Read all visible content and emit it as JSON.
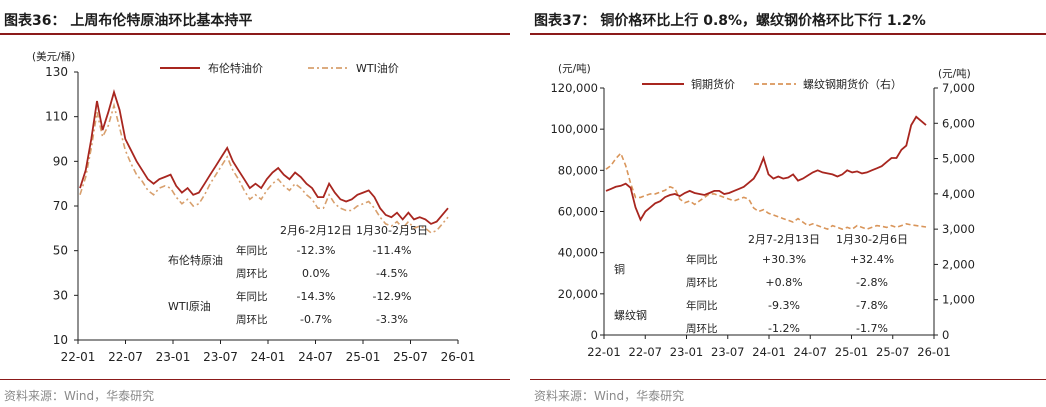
{
  "left": {
    "fig_title": "图表36：  上周布伦特原油环比基本持平",
    "source": "资料来源：Wind，华泰研究",
    "chart_data": {
      "type": "line",
      "ylabel": "(美元/桶)",
      "ylim": [
        10,
        130
      ],
      "yticks": [
        10,
        30,
        50,
        70,
        90,
        110,
        130
      ],
      "xticks": [
        "22-01",
        "22-07",
        "23-01",
        "23-07",
        "24-01",
        "24-07",
        "25-01",
        "25-07",
        "26-01"
      ],
      "series": [
        {
          "name": "布伦特油价",
          "color": "#a8261f",
          "values": [
            78,
            86,
            100,
            117,
            104,
            112,
            121,
            113,
            100,
            95,
            90,
            86,
            82,
            80,
            82,
            83,
            84,
            79,
            76,
            78,
            75,
            76,
            80,
            84,
            88,
            92,
            96,
            90,
            86,
            82,
            78,
            80,
            78,
            82,
            85,
            87,
            84,
            82,
            85,
            83,
            80,
            78,
            74,
            74,
            80,
            76,
            73,
            72,
            73,
            75,
            76,
            77,
            74,
            69,
            66,
            65,
            67,
            64,
            67,
            64,
            65,
            64,
            62,
            63,
            66,
            69
          ]
        },
        {
          "name": "WTI油价",
          "color": "#d8a06e",
          "values": [
            75,
            83,
            96,
            112,
            101,
            106,
            115,
            105,
            95,
            89,
            84,
            81,
            77,
            75,
            78,
            79,
            78,
            74,
            71,
            73,
            70,
            71,
            75,
            80,
            84,
            88,
            92,
            86,
            82,
            77,
            73,
            75,
            73,
            77,
            80,
            82,
            79,
            77,
            80,
            78,
            75,
            73,
            69,
            69,
            75,
            71,
            69,
            68,
            68,
            70,
            71,
            72,
            69,
            65,
            62,
            61,
            63,
            60,
            63,
            60,
            61,
            60,
            58,
            59,
            62,
            65
          ]
        }
      ],
      "table": {
        "periods": [
          "2月6-2月12日",
          "1月30-2月5日"
        ],
        "groups": [
          {
            "name": "布伦特原油",
            "rows": [
              {
                "label": "年同比",
                "values": [
                  "-12.3%",
                  "-11.4%"
                ]
              },
              {
                "label": "周环比",
                "values": [
                  "0.0%",
                  "-4.5%"
                ]
              }
            ]
          },
          {
            "name": "WTI原油",
            "rows": [
              {
                "label": "年同比",
                "values": [
                  "-14.3%",
                  "-12.9%"
                ]
              },
              {
                "label": "周环比",
                "values": [
                  "-0.7%",
                  "-3.3%"
                ]
              }
            ]
          }
        ]
      }
    }
  },
  "right": {
    "fig_title": "图表37：  铜价格环比上行 0.8%，螺纹钢价格环比下行 1.2%",
    "source": "资料来源：Wind，华泰研究",
    "chart_data": {
      "type": "line",
      "ylabel_left": "(元/吨)",
      "ylabel_right": "(元/吨)",
      "ylim_left": [
        0,
        120000
      ],
      "ylim_right": [
        0,
        7000
      ],
      "yticks_left": [
        "0",
        "20,000",
        "40,000",
        "60,000",
        "80,000",
        "100,000",
        "120,000"
      ],
      "yticks_right": [
        "0",
        "1,000",
        "2,000",
        "3,000",
        "4,000",
        "5,000",
        "6,000",
        "7,000"
      ],
      "xticks": [
        "22-01",
        "22-07",
        "23-01",
        "23-07",
        "24-01",
        "24-07",
        "25-01",
        "25-07",
        "26-01"
      ],
      "series": [
        {
          "name": "铜期货价",
          "axis": "left",
          "color": "#a8261f",
          "values": [
            70000,
            71000,
            72000,
            72500,
            73500,
            71500,
            62000,
            56000,
            60000,
            62000,
            64000,
            65000,
            67000,
            68000,
            68500,
            67500,
            69000,
            70000,
            69000,
            68500,
            68000,
            69000,
            70000,
            70000,
            68500,
            69000,
            70000,
            71000,
            72000,
            74000,
            76000,
            80000,
            86000,
            78000,
            76000,
            77000,
            76000,
            76500,
            78000,
            75000,
            76000,
            77500,
            79000,
            80000,
            79000,
            78500,
            78000,
            77000,
            78000,
            80000,
            79000,
            79500,
            78500,
            79000,
            80000,
            81000,
            82000,
            84000,
            86000,
            86000,
            90000,
            92000,
            102000,
            106000,
            104000,
            102000
          ]
        },
        {
          "name": "螺纹钢期货价（右）",
          "axis": "right",
          "color": "#d9955a",
          "values": [
            4700,
            4800,
            5000,
            5150,
            4800,
            4300,
            3900,
            3900,
            3950,
            4000,
            4000,
            4050,
            4100,
            4200,
            4150,
            3850,
            3750,
            3800,
            3700,
            3800,
            3900,
            4000,
            4000,
            3950,
            3900,
            3850,
            3800,
            3850,
            3900,
            3850,
            3600,
            3500,
            3550,
            3450,
            3400,
            3350,
            3300,
            3250,
            3200,
            3300,
            3200,
            3100,
            3150,
            3100,
            3050,
            3000,
            3100,
            3050,
            3000,
            3050,
            3000,
            3100,
            3050,
            3000,
            3050,
            3100,
            3080,
            3050,
            3100,
            3050,
            3100,
            3150,
            3120,
            3100,
            3080,
            3060
          ]
        }
      ],
      "table": {
        "periods": [
          "2月7-2月13日",
          "1月30-2月6日"
        ],
        "groups": [
          {
            "name": "铜",
            "rows": [
              {
                "label": "年同比",
                "values": [
                  "+30.3%",
                  "+32.4%"
                ]
              },
              {
                "label": "周环比",
                "values": [
                  "+0.8%",
                  "-2.8%"
                ]
              }
            ]
          },
          {
            "name": "螺纹钢",
            "rows": [
              {
                "label": "年同比",
                "values": [
                  "-9.3%",
                  "-7.8%"
                ]
              },
              {
                "label": "周环比",
                "values": [
                  "-1.2%",
                  "-1.7%"
                ]
              }
            ]
          }
        ]
      }
    }
  }
}
